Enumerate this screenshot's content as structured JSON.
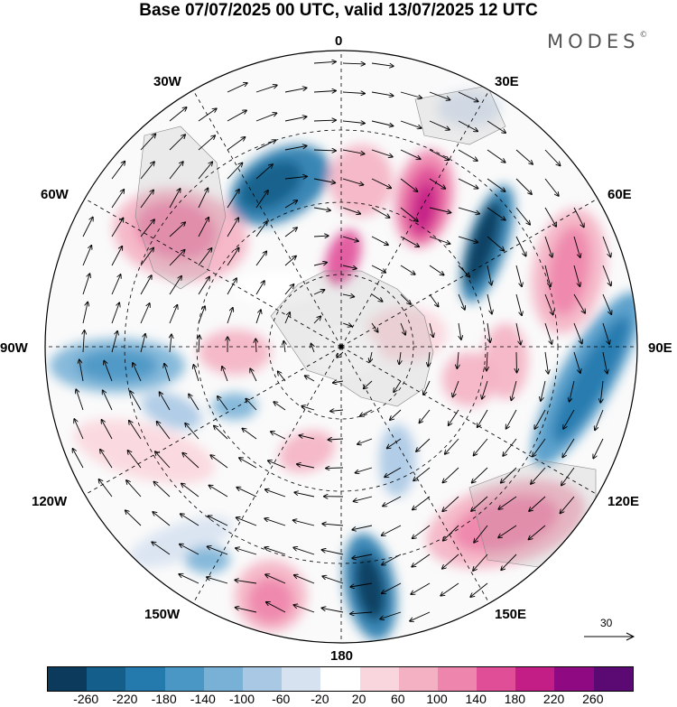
{
  "header": {
    "title": "Base 07/07/2025 00 UTC, valid 13/07/2025 12 UTC",
    "brand": "MODES",
    "brand_mark": "©"
  },
  "map": {
    "projection": "south-polar-stereographic",
    "longitude_labels": [
      "0",
      "30E",
      "60E",
      "90E",
      "120E",
      "150E",
      "180",
      "150W",
      "120W",
      "90W",
      "60W",
      "30W"
    ],
    "vector_reference": "30",
    "vector_reference_icon": "arrow-right-icon"
  },
  "colorbar": {
    "tick_labels": [
      "-260",
      "-220",
      "-180",
      "-140",
      "-100",
      "-60",
      "-20",
      "20",
      "60",
      "100",
      "140",
      "180",
      "220",
      "260"
    ],
    "colors": [
      "#0b3a5c",
      "#135e8a",
      "#2479ad",
      "#4a97c6",
      "#79b1d6",
      "#a9c8e4",
      "#d7e2f1",
      "#ffffff",
      "#f9d6dd",
      "#f4b1c3",
      "#ee85ac",
      "#e04e98",
      "#c31e86",
      "#8f0a82",
      "#5a0a72"
    ]
  }
}
